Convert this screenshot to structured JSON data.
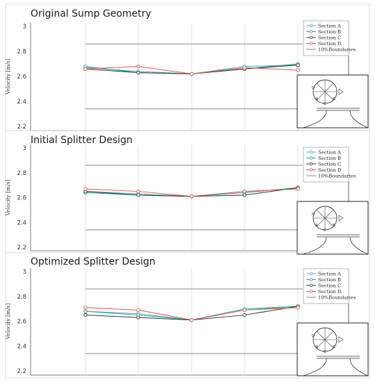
{
  "chart_data": [
    {
      "type": "line",
      "title": "Original Sump Geometry",
      "ylabel": "Velocity [m/s]",
      "xlabel": "",
      "ylim": [
        2.2,
        3.0
      ],
      "yticks": [
        "3",
        "2.8",
        "2.6",
        "2.4",
        "2.2"
      ],
      "x": [
        1,
        2,
        3,
        4,
        5
      ],
      "grid": "vertical",
      "legend_position": "top-right",
      "series": [
        {
          "name": "Section A",
          "color": "#4aa8c9",
          "values": [
            2.67,
            2.64,
            2.62,
            2.68,
            2.69
          ]
        },
        {
          "name": "Section B",
          "color": "#1aa88c",
          "values": [
            2.68,
            2.63,
            2.62,
            2.66,
            2.7
          ]
        },
        {
          "name": "Section C",
          "color": "#333333",
          "values": [
            2.66,
            2.63,
            2.62,
            2.66,
            2.69
          ]
        },
        {
          "name": "Section D",
          "color": "#e0574a",
          "values": [
            2.66,
            2.68,
            2.62,
            2.67,
            2.65
          ]
        }
      ],
      "boundaries": {
        "name": "10%Boundaries",
        "color": "#8a8a8a",
        "values": [
          2.86,
          2.34
        ]
      }
    },
    {
      "type": "line",
      "title": "Initial Splitter Design",
      "ylabel": "Velocity [m/s]",
      "xlabel": "",
      "ylim": [
        2.2,
        3.0
      ],
      "yticks": [
        "3",
        "2.8",
        "2.6",
        "2.4",
        "2.2"
      ],
      "x": [
        1,
        2,
        3,
        4,
        5
      ],
      "grid": "vertical",
      "legend_position": "top-right",
      "series": [
        {
          "name": "Section A",
          "color": "#4aa8c9",
          "values": [
            2.65,
            2.63,
            2.61,
            2.65,
            2.67
          ]
        },
        {
          "name": "Section B",
          "color": "#1aa88c",
          "values": [
            2.64,
            2.62,
            2.61,
            2.64,
            2.68
          ]
        },
        {
          "name": "Section C",
          "color": "#333333",
          "values": [
            2.65,
            2.62,
            2.61,
            2.62,
            2.68
          ]
        },
        {
          "name": "Section D",
          "color": "#e0574a",
          "values": [
            2.67,
            2.65,
            2.61,
            2.65,
            2.67
          ]
        }
      ],
      "boundaries": {
        "name": "10%Boundaries",
        "color": "#8a8a8a",
        "values": [
          2.86,
          2.34
        ]
      }
    },
    {
      "type": "line",
      "title": "Optimized Splitter Design",
      "ylabel": "Velocity [m/s]",
      "xlabel": "",
      "ylim": [
        2.2,
        3.0
      ],
      "yticks": [
        "3",
        "2.8",
        "2.6",
        "2.4",
        "2.2"
      ],
      "x": [
        1,
        2,
        3,
        4,
        5
      ],
      "grid": "vertical",
      "legend_position": "top-right",
      "series": [
        {
          "name": "Section A",
          "color": "#4aa8c9",
          "values": [
            2.68,
            2.66,
            2.61,
            2.7,
            2.72
          ]
        },
        {
          "name": "Section B",
          "color": "#1aa88c",
          "values": [
            2.68,
            2.65,
            2.61,
            2.69,
            2.72
          ]
        },
        {
          "name": "Section C",
          "color": "#333333",
          "values": [
            2.65,
            2.63,
            2.61,
            2.65,
            2.72
          ]
        },
        {
          "name": "Section D",
          "color": "#e0574a",
          "values": [
            2.71,
            2.69,
            2.61,
            2.69,
            2.71
          ]
        }
      ],
      "boundaries": {
        "name": "10%Boundaries",
        "color": "#8a8a8a",
        "values": [
          2.86,
          2.34
        ]
      }
    }
  ],
  "inset_icon": "sump-cross-section-diagram",
  "inset_labels": [
    "D",
    "A",
    "C",
    "B"
  ]
}
